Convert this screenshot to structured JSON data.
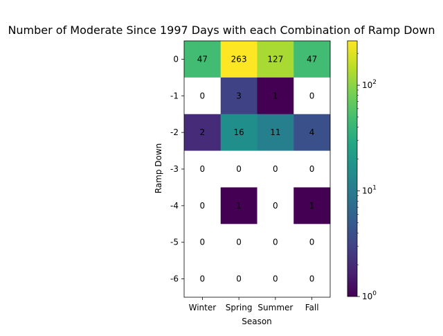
{
  "chart_data": {
    "type": "heatmap",
    "title": "Number of Moderate Since 1997 Days with each Combination of Ramp Down",
    "xlabel": "Season",
    "ylabel": "Ramp Down",
    "x_categories": [
      "Winter",
      "Spring",
      "Summer",
      "Fall"
    ],
    "y_categories": [
      "0",
      "-1",
      "-2",
      "-3",
      "-4",
      "-5",
      "-6"
    ],
    "values": [
      [
        47,
        263,
        127,
        47
      ],
      [
        0,
        3,
        1,
        0
      ],
      [
        2,
        16,
        11,
        4
      ],
      [
        0,
        0,
        0,
        0
      ],
      [
        0,
        1,
        0,
        1
      ],
      [
        0,
        0,
        0,
        0
      ],
      [
        0,
        0,
        0,
        0
      ]
    ],
    "colorbar": {
      "scale": "log",
      "colormap": "viridis",
      "range": [
        1,
        263
      ],
      "tick_labels": [
        "10^0",
        "10^1",
        "10^2"
      ],
      "tick_values": [
        1,
        10,
        100
      ]
    },
    "zero_cells_color": "#ffffff"
  }
}
